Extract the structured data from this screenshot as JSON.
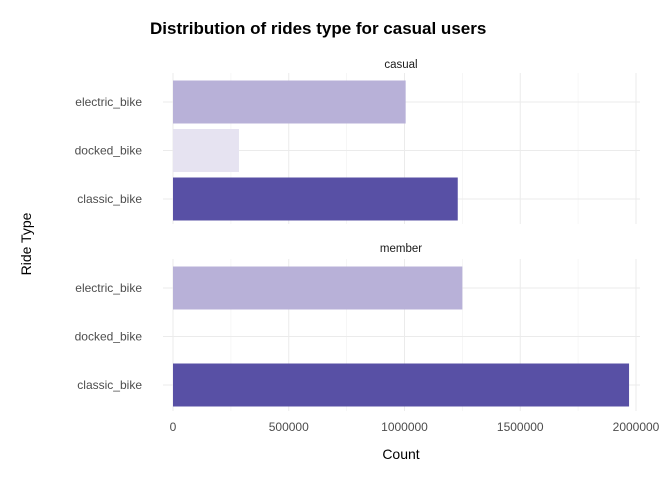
{
  "chart_data": {
    "type": "bar",
    "orientation": "horizontal",
    "title": "Distribution of rides type for casual users",
    "xlabel": "Count",
    "ylabel": "Ride Type",
    "xlim": [
      0,
      2050000
    ],
    "x_ticks": [
      0,
      500000,
      1000000,
      1500000,
      2000000
    ],
    "x_tick_labels": [
      "0",
      "500000",
      "1000000",
      "1500000",
      "2000000"
    ],
    "categories": [
      "electric_bike",
      "docked_bike",
      "classic_bike"
    ],
    "category_colors": {
      "electric_bike": "#b8b1d8",
      "docked_bike": "#e6e3f1",
      "classic_bike": "#5850a5"
    },
    "grid": true,
    "facets": [
      {
        "label": "casual",
        "values": [
          1005000,
          285000,
          1230000
        ]
      },
      {
        "label": "member",
        "values": [
          1250000,
          0,
          1970000
        ]
      }
    ]
  }
}
